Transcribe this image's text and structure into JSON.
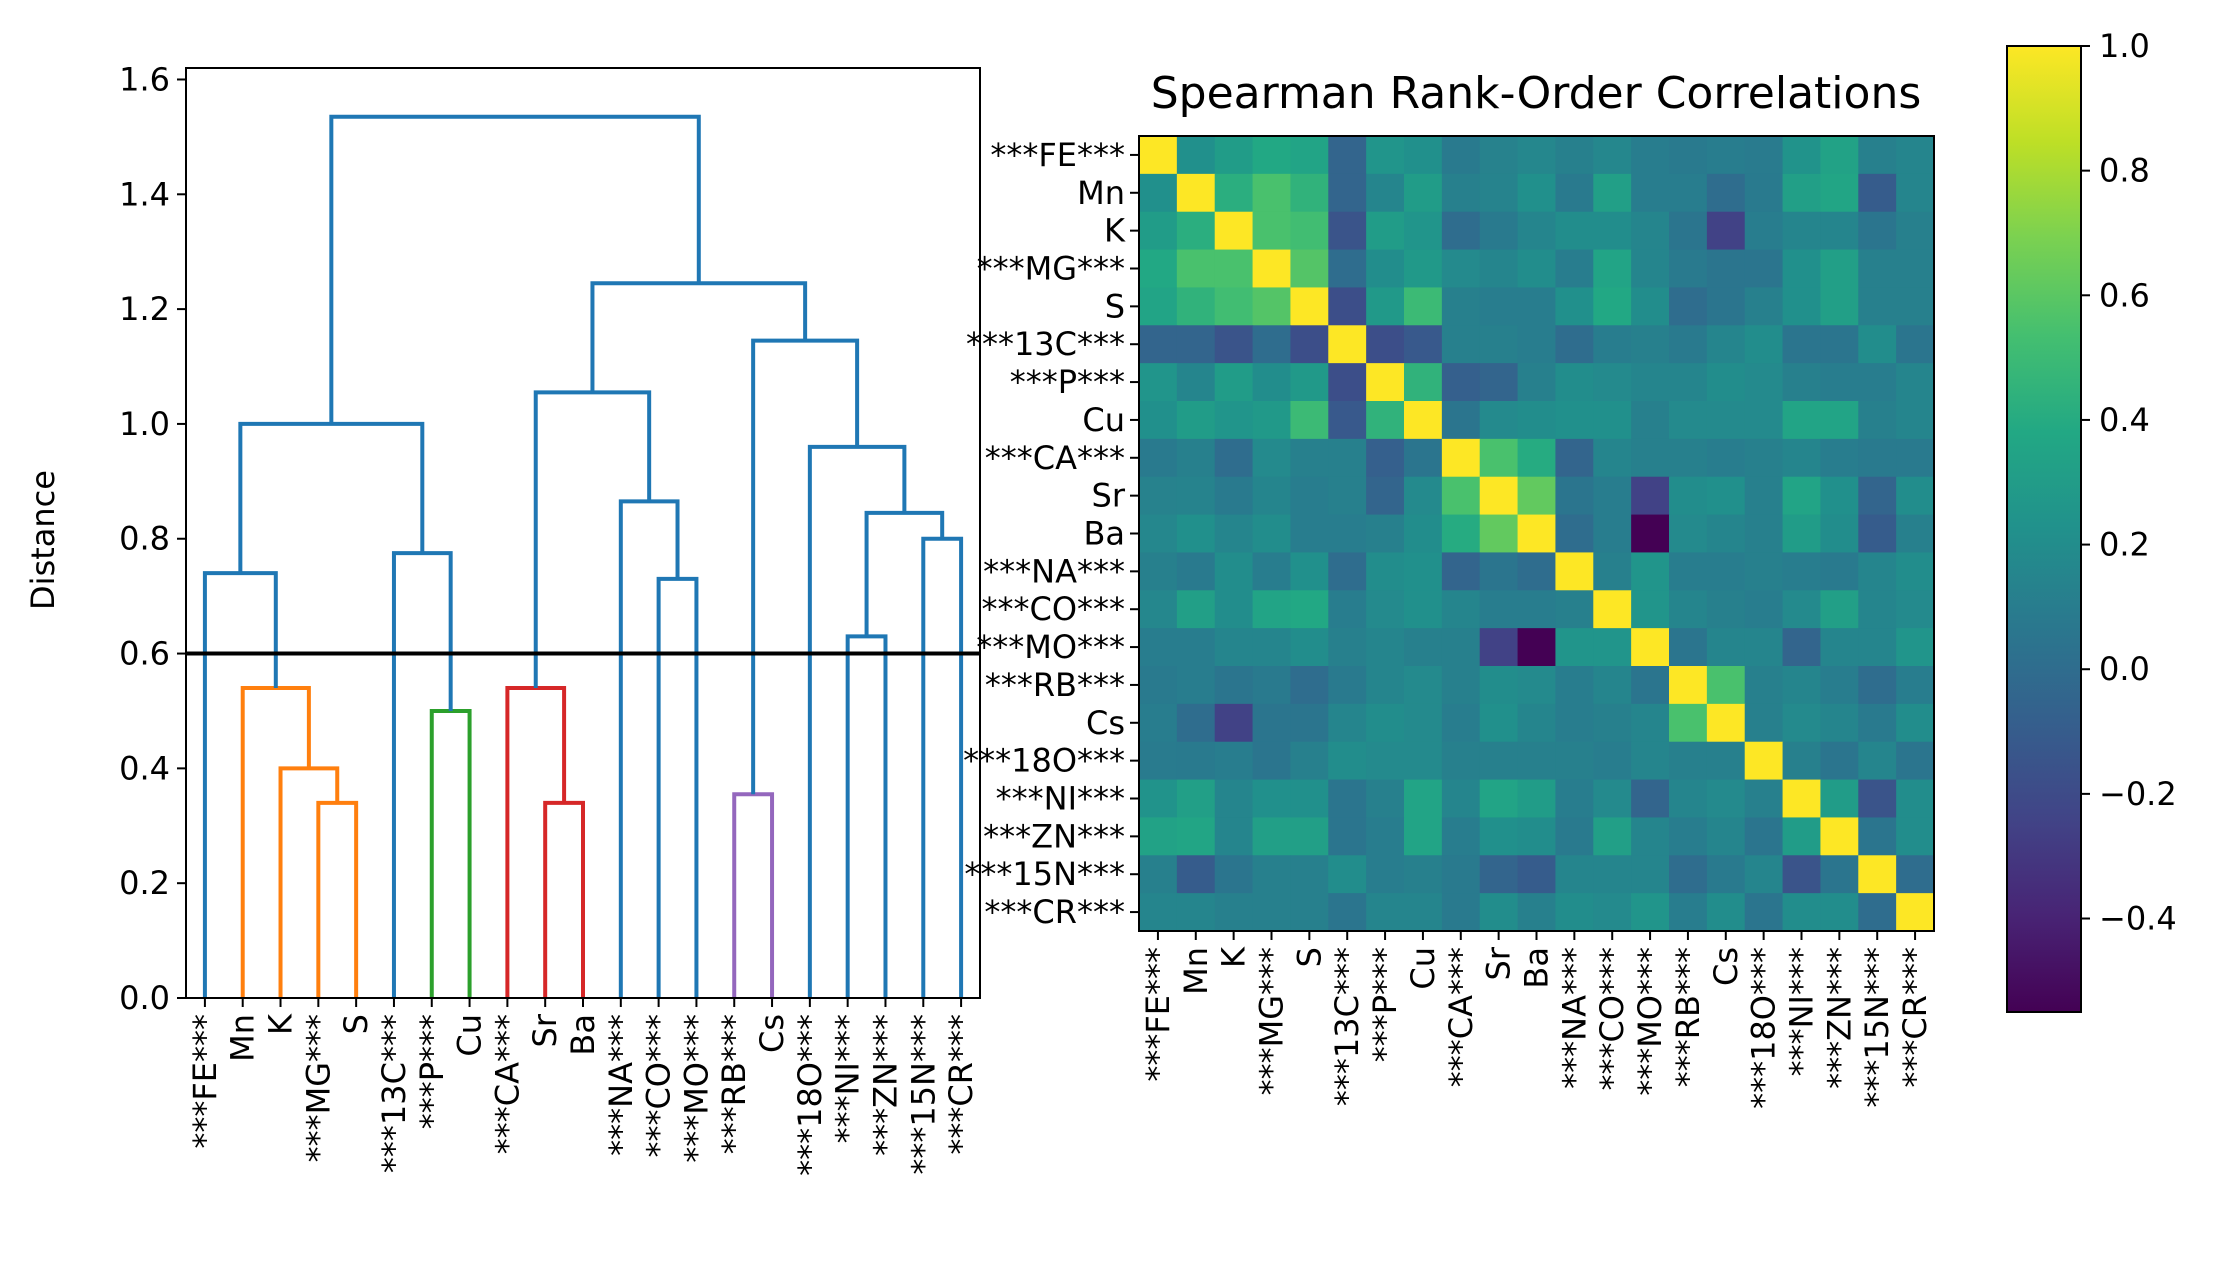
{
  "chart_data": [
    {
      "type": "dendrogram",
      "ylabel": "Distance",
      "ylim": [
        0,
        1.62
      ],
      "yticks": [
        "0.0",
        "0.2",
        "0.4",
        "0.6",
        "0.8",
        "1.0",
        "1.2",
        "1.4",
        "1.6"
      ],
      "threshold": 0.6,
      "leaves": [
        "***FE***",
        "Mn",
        "K",
        "***MG***",
        "S",
        "***13C***",
        "***P***",
        "Cu",
        "***CA***",
        "Sr",
        "Ba",
        "***NA***",
        "***CO***",
        "***MO***",
        "***RB***",
        "Cs",
        "***18O***",
        "***NI***",
        "***ZN***",
        "***15N***",
        "***CR***"
      ],
      "links": [
        {
          "left": "l3",
          "right": "l4",
          "height": 0.34,
          "color": "#ff7f0e"
        },
        {
          "left": "l2",
          "right": "n0",
          "height": 0.4,
          "color": "#ff7f0e"
        },
        {
          "left": "l1",
          "right": "n1",
          "height": 0.54,
          "color": "#ff7f0e"
        },
        {
          "left": "l0",
          "right": "n2",
          "height": 0.74,
          "color": "#1f77b4"
        },
        {
          "left": "l6",
          "right": "l7",
          "height": 0.5,
          "color": "#2ca02c"
        },
        {
          "left": "l5",
          "right": "n4",
          "height": 0.775,
          "color": "#1f77b4"
        },
        {
          "left": "n3",
          "right": "n5",
          "height": 1.0,
          "color": "#1f77b4"
        },
        {
          "left": "l9",
          "right": "l10",
          "height": 0.34,
          "color": "#d62728"
        },
        {
          "left": "l8",
          "right": "n7",
          "height": 0.54,
          "color": "#d62728"
        },
        {
          "left": "l12",
          "right": "l13",
          "height": 0.73,
          "color": "#1f77b4"
        },
        {
          "left": "l11",
          "right": "n9",
          "height": 0.865,
          "color": "#1f77b4"
        },
        {
          "left": "n8",
          "right": "n10",
          "height": 1.055,
          "color": "#1f77b4"
        },
        {
          "left": "l14",
          "right": "l15",
          "height": 0.355,
          "color": "#9467bd"
        },
        {
          "left": "l17",
          "right": "l18",
          "height": 0.63,
          "color": "#1f77b4"
        },
        {
          "left": "l19",
          "right": "l20",
          "height": 0.8,
          "color": "#1f77b4"
        },
        {
          "left": "n13",
          "right": "n14",
          "height": 0.845,
          "color": "#1f77b4"
        },
        {
          "left": "l16",
          "right": "n15",
          "height": 0.96,
          "color": "#1f77b4"
        },
        {
          "left": "n12",
          "right": "n16",
          "height": 1.145,
          "color": "#1f77b4"
        },
        {
          "left": "n11",
          "right": "n17",
          "height": 1.245,
          "color": "#1f77b4"
        },
        {
          "left": "n6",
          "right": "n18",
          "height": 1.535,
          "color": "#1f77b4"
        }
      ]
    },
    {
      "type": "heatmap",
      "title": "Spearman Rank-Order Correlations",
      "labels": [
        "***FE***",
        "Mn",
        "K",
        "***MG***",
        "S",
        "***13C***",
        "***P***",
        "Cu",
        "***CA***",
        "Sr",
        "Ba",
        "***NA***",
        "***CO***",
        "***MO***",
        "***RB***",
        "Cs",
        "***18O***",
        "***NI***",
        "***ZN***",
        "***15N***",
        "***CR***"
      ],
      "colormap": "viridis",
      "vmin": -0.55,
      "vmax": 1.0,
      "colorbar_ticks": [
        "1.0",
        "0.8",
        "0.6",
        "0.4",
        "0.2",
        "0.0",
        "−0.2",
        "−0.4"
      ],
      "values": [
        [
          1.0,
          0.22,
          0.3,
          0.38,
          0.35,
          -0.05,
          0.25,
          0.22,
          0.08,
          0.13,
          0.16,
          0.12,
          0.16,
          0.1,
          0.08,
          0.1,
          0.09,
          0.24,
          0.34,
          0.12,
          0.15
        ],
        [
          0.22,
          1.0,
          0.42,
          0.55,
          0.45,
          -0.05,
          0.15,
          0.3,
          0.12,
          0.14,
          0.22,
          0.08,
          0.32,
          0.1,
          0.1,
          0.0,
          0.08,
          0.32,
          0.36,
          -0.1,
          0.15
        ],
        [
          0.3,
          0.42,
          1.0,
          0.55,
          0.52,
          -0.15,
          0.3,
          0.25,
          0.0,
          0.08,
          0.15,
          0.2,
          0.2,
          0.15,
          0.05,
          -0.25,
          0.1,
          0.15,
          0.15,
          0.05,
          0.12
        ],
        [
          0.38,
          0.55,
          0.55,
          1.0,
          0.58,
          0.0,
          0.2,
          0.28,
          0.18,
          0.15,
          0.2,
          0.1,
          0.35,
          0.15,
          0.08,
          0.05,
          0.05,
          0.22,
          0.32,
          0.12,
          0.12
        ],
        [
          0.35,
          0.45,
          0.52,
          0.58,
          1.0,
          -0.18,
          0.28,
          0.5,
          0.12,
          0.1,
          0.1,
          0.22,
          0.38,
          0.2,
          0.0,
          0.05,
          0.12,
          0.22,
          0.32,
          0.12,
          0.12
        ],
        [
          -0.05,
          -0.05,
          -0.15,
          0.0,
          -0.18,
          1.0,
          -0.18,
          -0.12,
          0.12,
          0.12,
          0.1,
          0.0,
          0.1,
          0.12,
          0.08,
          0.15,
          0.2,
          0.05,
          0.05,
          0.2,
          0.05
        ],
        [
          0.25,
          0.15,
          0.3,
          0.2,
          0.28,
          -0.18,
          1.0,
          0.45,
          -0.08,
          -0.05,
          0.12,
          0.2,
          0.18,
          0.15,
          0.15,
          0.2,
          0.18,
          0.12,
          0.1,
          0.1,
          0.15
        ],
        [
          0.22,
          0.3,
          0.25,
          0.28,
          0.5,
          -0.12,
          0.45,
          1.0,
          0.05,
          0.18,
          0.2,
          0.22,
          0.22,
          0.12,
          0.18,
          0.18,
          0.18,
          0.35,
          0.35,
          0.12,
          0.15
        ],
        [
          0.08,
          0.12,
          0.0,
          0.18,
          0.12,
          0.12,
          -0.08,
          0.05,
          1.0,
          0.55,
          0.4,
          -0.05,
          0.15,
          0.12,
          0.12,
          0.1,
          0.12,
          0.15,
          0.1,
          0.08,
          0.08
        ],
        [
          0.13,
          0.14,
          0.08,
          0.15,
          0.1,
          0.12,
          -0.05,
          0.18,
          0.55,
          1.0,
          0.62,
          0.05,
          0.1,
          -0.25,
          0.2,
          0.22,
          0.12,
          0.35,
          0.22,
          -0.05,
          0.2
        ],
        [
          0.16,
          0.22,
          0.15,
          0.2,
          0.1,
          0.1,
          0.12,
          0.2,
          0.4,
          0.62,
          1.0,
          0.0,
          0.1,
          -0.55,
          0.18,
          0.15,
          0.12,
          0.3,
          0.2,
          -0.1,
          0.12
        ],
        [
          0.12,
          0.08,
          0.2,
          0.1,
          0.22,
          0.0,
          0.2,
          0.22,
          -0.05,
          0.05,
          0.0,
          1.0,
          0.12,
          0.25,
          0.1,
          0.1,
          0.12,
          0.1,
          0.08,
          0.15,
          0.2
        ],
        [
          0.16,
          0.32,
          0.2,
          0.35,
          0.38,
          0.1,
          0.18,
          0.22,
          0.15,
          0.1,
          0.1,
          0.12,
          1.0,
          0.25,
          0.15,
          0.12,
          0.1,
          0.18,
          0.32,
          0.15,
          0.18
        ],
        [
          0.1,
          0.1,
          0.15,
          0.15,
          0.2,
          0.12,
          0.15,
          0.12,
          0.12,
          -0.25,
          -0.55,
          0.25,
          0.25,
          1.0,
          0.05,
          0.15,
          0.15,
          -0.05,
          0.15,
          0.15,
          0.25
        ],
        [
          0.08,
          0.1,
          0.05,
          0.08,
          0.0,
          0.08,
          0.15,
          0.18,
          0.12,
          0.2,
          0.18,
          0.1,
          0.15,
          0.05,
          1.0,
          0.55,
          0.12,
          0.15,
          0.1,
          0.0,
          0.1
        ],
        [
          0.1,
          0.0,
          -0.25,
          0.05,
          0.05,
          0.15,
          0.2,
          0.18,
          0.1,
          0.22,
          0.15,
          0.1,
          0.12,
          0.15,
          0.55,
          1.0,
          0.12,
          0.18,
          0.15,
          0.08,
          0.2
        ],
        [
          0.09,
          0.08,
          0.1,
          0.05,
          0.12,
          0.2,
          0.18,
          0.18,
          0.12,
          0.12,
          0.12,
          0.12,
          0.1,
          0.15,
          0.12,
          0.12,
          1.0,
          0.12,
          0.05,
          0.15,
          0.05
        ],
        [
          0.24,
          0.32,
          0.15,
          0.22,
          0.22,
          0.05,
          0.12,
          0.35,
          0.15,
          0.35,
          0.3,
          0.1,
          0.18,
          -0.05,
          0.15,
          0.18,
          0.12,
          1.0,
          0.3,
          -0.15,
          0.2
        ],
        [
          0.34,
          0.36,
          0.15,
          0.32,
          0.32,
          0.05,
          0.1,
          0.35,
          0.1,
          0.22,
          0.2,
          0.08,
          0.32,
          0.15,
          0.1,
          0.15,
          0.05,
          0.3,
          1.0,
          0.05,
          0.2
        ],
        [
          0.12,
          -0.1,
          0.05,
          0.12,
          0.12,
          0.2,
          0.1,
          0.12,
          0.08,
          -0.05,
          -0.1,
          0.15,
          0.15,
          0.15,
          0.0,
          0.08,
          0.15,
          -0.15,
          0.05,
          1.0,
          0.0
        ],
        [
          0.15,
          0.15,
          0.12,
          0.12,
          0.12,
          0.05,
          0.15,
          0.15,
          0.08,
          0.2,
          0.12,
          0.2,
          0.18,
          0.25,
          0.1,
          0.2,
          0.05,
          0.2,
          0.2,
          0.0,
          1.0
        ]
      ]
    }
  ]
}
